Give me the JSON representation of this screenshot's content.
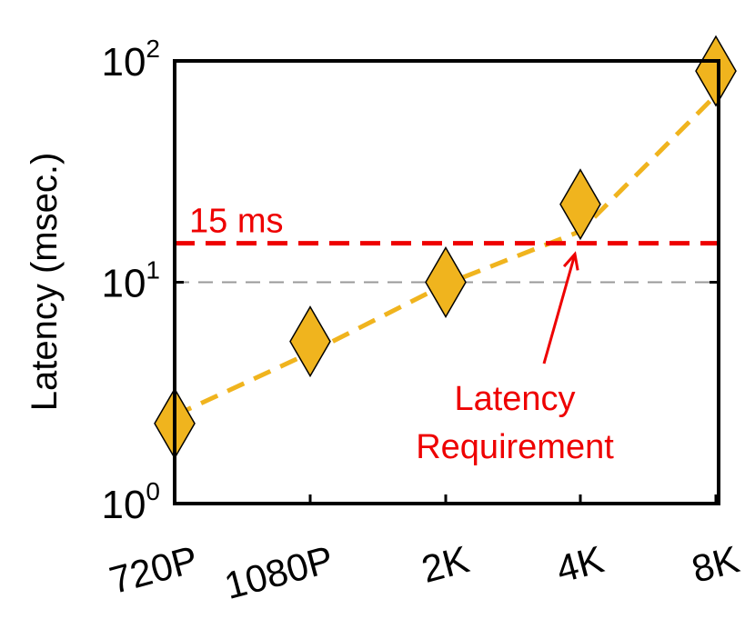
{
  "chart_data": {
    "type": "scatter",
    "ylabel": "Latency (msec.)",
    "yscale": "log",
    "ylim": [
      1,
      100
    ],
    "y_ticks": [
      {
        "base": "10",
        "exp": "0",
        "value": 1
      },
      {
        "base": "10",
        "exp": "1",
        "value": 10
      },
      {
        "base": "10",
        "exp": "2",
        "value": 100
      }
    ],
    "categories": [
      "720P",
      "1080P",
      "2K",
      "4K",
      "8K"
    ],
    "series": [
      {
        "values": [
          2.3,
          5.4,
          10.0,
          22.5,
          90.0
        ],
        "marker": "diamond",
        "color": "#f0b41e",
        "trend": "dashed"
      }
    ],
    "trend_values": [
      2.5,
      4.8,
      9.8,
      17.0,
      70.0
    ],
    "threshold": {
      "value": 15,
      "label": "15 ms",
      "color": "#ee0000"
    },
    "reference_line": {
      "value": 10,
      "color": "#999999"
    },
    "annotation": {
      "lines": [
        "Latency",
        "Requirement"
      ],
      "color": "#ee0000"
    },
    "grid": false
  }
}
